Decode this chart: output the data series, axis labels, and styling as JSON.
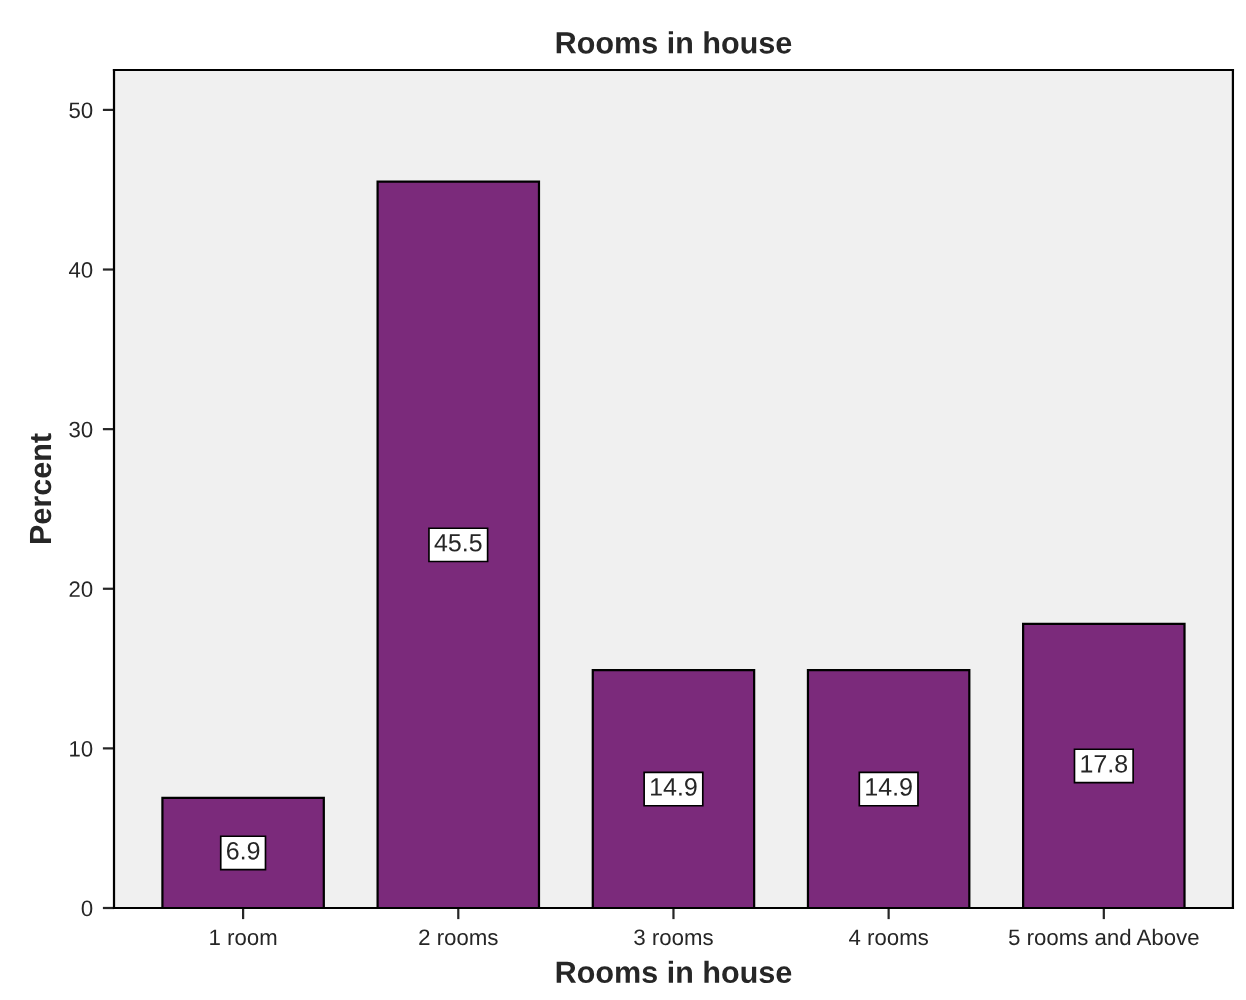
{
  "chart_data": {
    "type": "bar",
    "title": "Rooms in house",
    "xlabel": "Rooms in house",
    "ylabel": "Percent",
    "categories": [
      "1 room",
      "2 rooms",
      "3 rooms",
      "4 rooms",
      "5 rooms and Above"
    ],
    "values": [
      6.9,
      45.5,
      14.9,
      14.9,
      17.8
    ],
    "color": "#7b2a7b",
    "ylim": [
      0,
      52.5
    ],
    "yticks": [
      0,
      10,
      20,
      30,
      40,
      50
    ],
    "data_labels": true,
    "grid": false,
    "legend": false
  }
}
